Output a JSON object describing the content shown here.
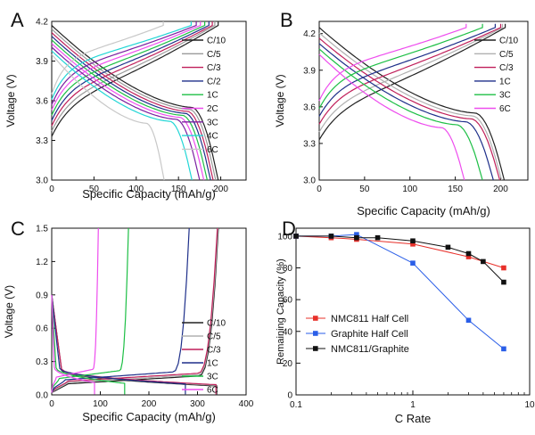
{
  "chart_data": [
    {
      "panel": "A",
      "type": "line",
      "xlabel": "Specific Capacity (mAh/g)",
      "ylabel": "Voltage (V)",
      "xlim": [
        0,
        230
      ],
      "ylim": [
        3.0,
        4.2
      ],
      "xticks": [
        0,
        50,
        100,
        150,
        200
      ],
      "yticks": [
        3.0,
        3.3,
        3.6,
        3.9,
        4.2
      ],
      "ytick_labels": [
        "3.0",
        "3.3",
        "3.6",
        "3.9",
        "4.2"
      ],
      "legend_position": "top-right",
      "series": [
        {
          "name": "C/10",
          "color": "#222222",
          "charge_cap": 197,
          "discharge_cap": 197
        },
        {
          "name": "C/5",
          "color": "#9a9a9a",
          "charge_cap": 193,
          "discharge_cap": 194
        },
        {
          "name": "C/3",
          "color": "#c01f5a",
          "charge_cap": 190,
          "discharge_cap": 191
        },
        {
          "name": "C/2",
          "color": "#1e2f8a",
          "charge_cap": 186,
          "discharge_cap": 188
        },
        {
          "name": "1C",
          "color": "#1dbf45",
          "charge_cap": 181,
          "discharge_cap": 184
        },
        {
          "name": "2C",
          "color": "#ee4dee",
          "charge_cap": 176,
          "discharge_cap": 180
        },
        {
          "name": "3C",
          "color": "#7b1fa0",
          "charge_cap": 171,
          "discharge_cap": 175
        },
        {
          "name": "4C",
          "color": "#22d6d6",
          "charge_cap": 165,
          "discharge_cap": 166
        },
        {
          "name": "6C",
          "color": "#c8c8c8",
          "charge_cap": 132,
          "discharge_cap": 133
        }
      ]
    },
    {
      "panel": "B",
      "type": "line",
      "xlabel": "Specific Capacity (mAh/g)",
      "ylabel": "Voltage (V)",
      "xlim": [
        0,
        230
      ],
      "ylim": [
        3.0,
        4.3
      ],
      "xticks": [
        0,
        50,
        100,
        150,
        200
      ],
      "yticks": [
        3.0,
        3.3,
        3.6,
        3.9,
        4.2
      ],
      "ytick_labels": [
        "3.0",
        "3.3",
        "3.6",
        "3.9",
        "4.2"
      ],
      "legend_position": "top-right",
      "series": [
        {
          "name": "C/10",
          "color": "#222222",
          "charge_cap": 205,
          "discharge_cap": 204
        },
        {
          "name": "C/5",
          "color": "#b0b0b0",
          "charge_cap": 202,
          "discharge_cap": 201
        },
        {
          "name": "C/3",
          "color": "#c01f5a",
          "charge_cap": 200,
          "discharge_cap": 199
        },
        {
          "name": "1C",
          "color": "#1e2f8a",
          "charge_cap": 194,
          "discharge_cap": 192
        },
        {
          "name": "3C",
          "color": "#1dbf45",
          "charge_cap": 180,
          "discharge_cap": 180
        },
        {
          "name": "6C",
          "color": "#ee4dee",
          "charge_cap": 162,
          "discharge_cap": 160
        }
      ]
    },
    {
      "panel": "C",
      "type": "line",
      "xlabel": "Specific Capacity (mAh/g)",
      "ylabel": "Voltage (V)",
      "xlim": [
        0,
        400
      ],
      "ylim": [
        0.0,
        1.5
      ],
      "xticks": [
        0,
        100,
        200,
        300,
        400
      ],
      "yticks": [
        0.0,
        0.3,
        0.6,
        0.9,
        1.2,
        1.5
      ],
      "ytick_labels": [
        "0.0",
        "0.3",
        "0.6",
        "0.9",
        "1.2",
        "1.5"
      ],
      "legend_position": "bottom-right",
      "series": [
        {
          "name": "C/10",
          "color": "#222222",
          "lithiation_cap": 340,
          "delithiation_cap": 343
        },
        {
          "name": "C/5",
          "color": "#b0b0b0",
          "lithiation_cap": 339,
          "delithiation_cap": 342
        },
        {
          "name": "C/3",
          "color": "#c01f5a",
          "lithiation_cap": 338,
          "delithiation_cap": 341
        },
        {
          "name": "1C",
          "color": "#1e2f8a",
          "lithiation_cap": 275,
          "delithiation_cap": 283
        },
        {
          "name": "3C",
          "color": "#1dbf45",
          "lithiation_cap": 150,
          "delithiation_cap": 158
        },
        {
          "name": "6C",
          "color": "#ee4dee",
          "lithiation_cap": 88,
          "delithiation_cap": 96
        }
      ]
    },
    {
      "panel": "D",
      "type": "line",
      "xlabel": "C Rate",
      "ylabel": "Remaining Capacity (%)",
      "xscale": "log",
      "xlim": [
        0.1,
        10
      ],
      "ylim": [
        0,
        105
      ],
      "xticks": [
        0.1,
        1,
        10
      ],
      "xtick_labels": [
        "0.1",
        "1",
        "10"
      ],
      "yticks": [
        0,
        20,
        40,
        60,
        80,
        100
      ],
      "legend_position": "bottom-left",
      "series": [
        {
          "name": "NMC811 Half Cell",
          "color": "#e8302a",
          "marker": "square",
          "x": [
            0.1,
            0.2,
            0.33,
            1,
            3,
            6
          ],
          "y": [
            100,
            99,
            98,
            95,
            87,
            80
          ]
        },
        {
          "name": "Graphite Half Cell",
          "color": "#2a5ee8",
          "marker": "square",
          "x": [
            0.1,
            0.2,
            0.33,
            1,
            3,
            6
          ],
          "y": [
            100,
            100,
            101,
            83,
            47,
            29
          ]
        },
        {
          "name": "NMC811/Graphite",
          "color": "#111111",
          "marker": "square",
          "x": [
            0.1,
            0.2,
            0.33,
            0.5,
            1,
            2,
            3,
            4,
            6
          ],
          "y": [
            100,
            100,
            99,
            99,
            97,
            93,
            89,
            84,
            71
          ]
        }
      ]
    }
  ]
}
